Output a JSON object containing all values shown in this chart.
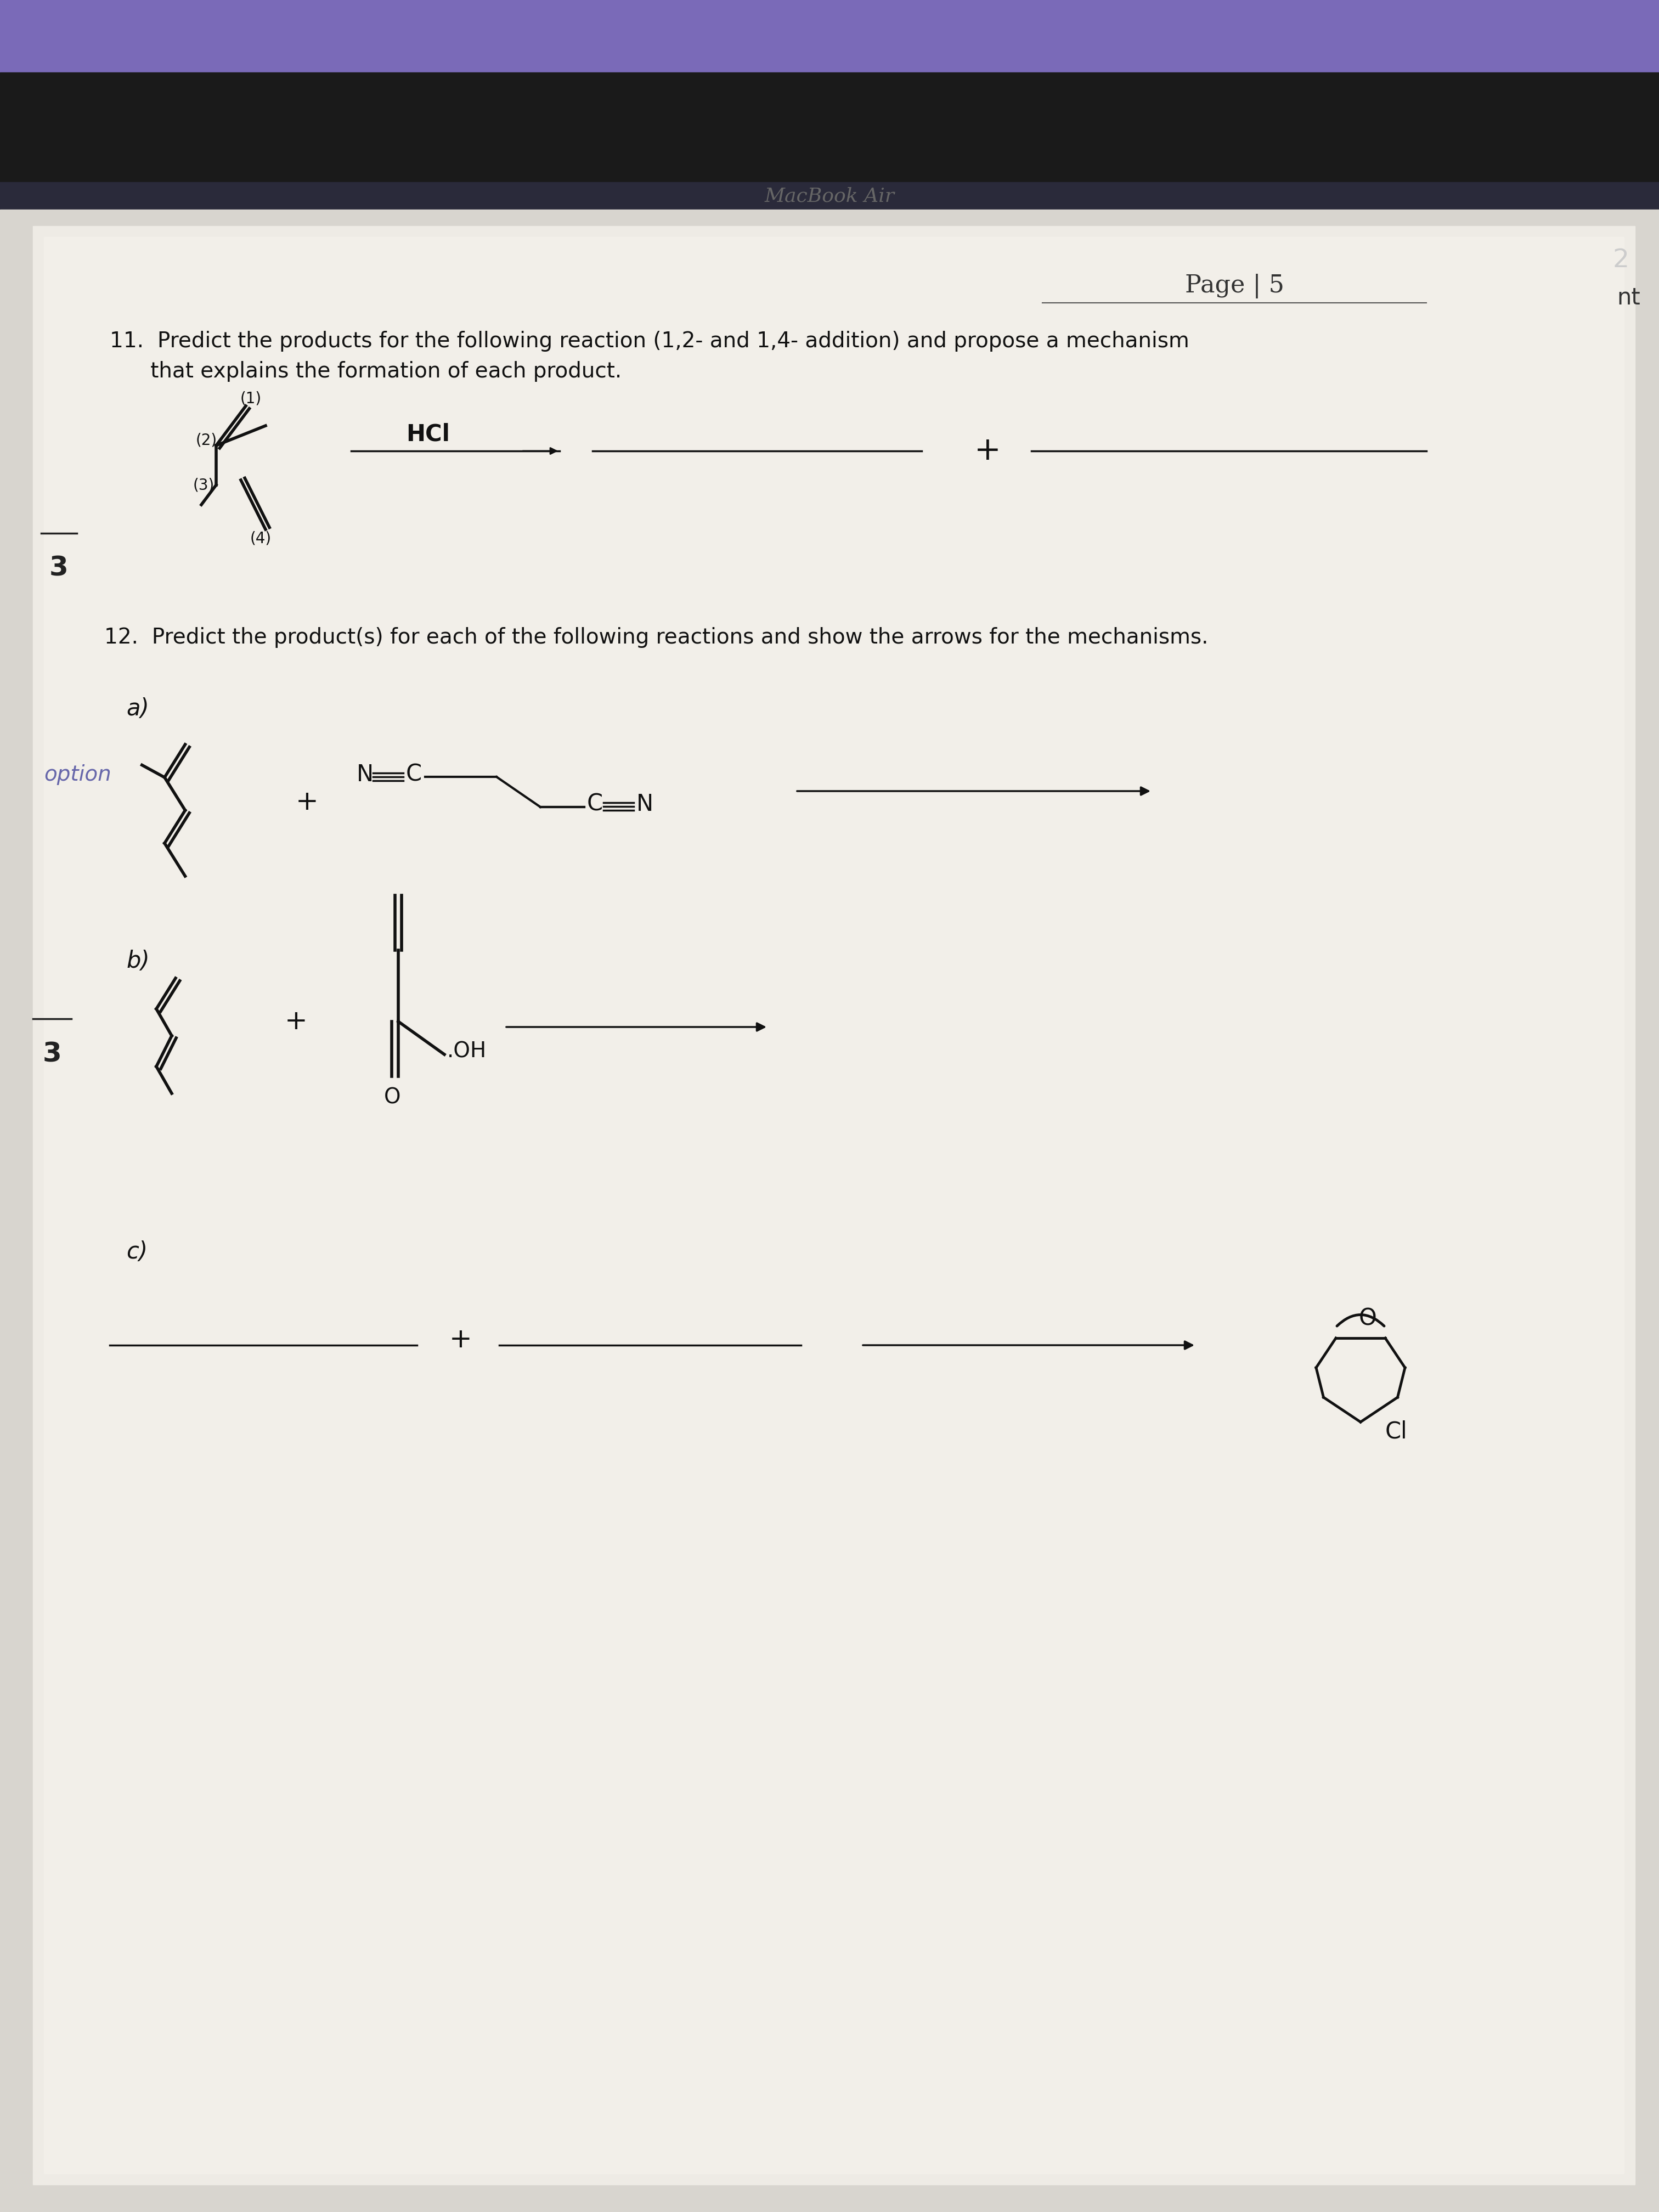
{
  "bg_top_color": "#1a1a1a",
  "bg_taskbar_color": "#6a5fa0",
  "paper_color": "#e8e6e0",
  "paper_surface_color": "#f0ede8",
  "text_color": "#111111",
  "page_header": "MacBook Air",
  "page_number": "2",
  "page_label": "Page | 5",
  "margin_label": "3",
  "option_label": "option",
  "q11_line1": "11.  Predict the products for the following reaction (1,2- and 1,4- addition) and propose a mechanism",
  "q11_line2": "      that explains the formation of each product.",
  "q11_reagent": "HCl",
  "q12_text": "12.  Predict the product(s) for each of the following reactions and show the arrows for the mechanisms.",
  "q12a_label": "a)",
  "q12b_label": "b)",
  "q12c_label": "c)",
  "q12c_cl": "Cl",
  "q12c_o": "O",
  "diene_labels": [
    "(1)",
    "(2)",
    "(3)",
    "(4)"
  ],
  "oh_label": "OH",
  "o_label": "O",
  "cn_label": "C≡N",
  "nc_label": "N≡C"
}
